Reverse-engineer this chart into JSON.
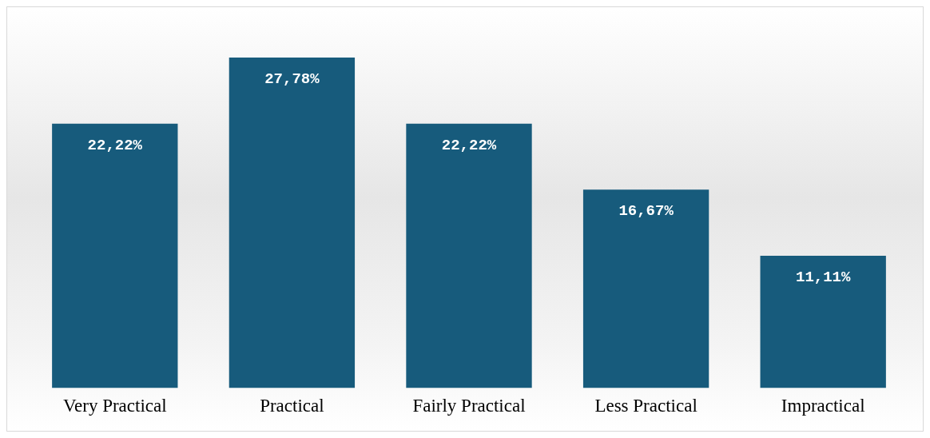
{
  "chart_data": {
    "type": "bar",
    "categories": [
      "Very Practical",
      "Practical",
      "Fairly Practical",
      "Less Practical",
      "Impractical"
    ],
    "values": [
      22.22,
      27.78,
      22.22,
      16.67,
      11.11
    ],
    "value_labels": [
      "22,22%",
      "27,78%",
      "22,22%",
      "16,67%",
      "11,11%"
    ],
    "color": "#175b7c",
    "grid": false,
    "legend": false,
    "tick_labels": "x"
  }
}
